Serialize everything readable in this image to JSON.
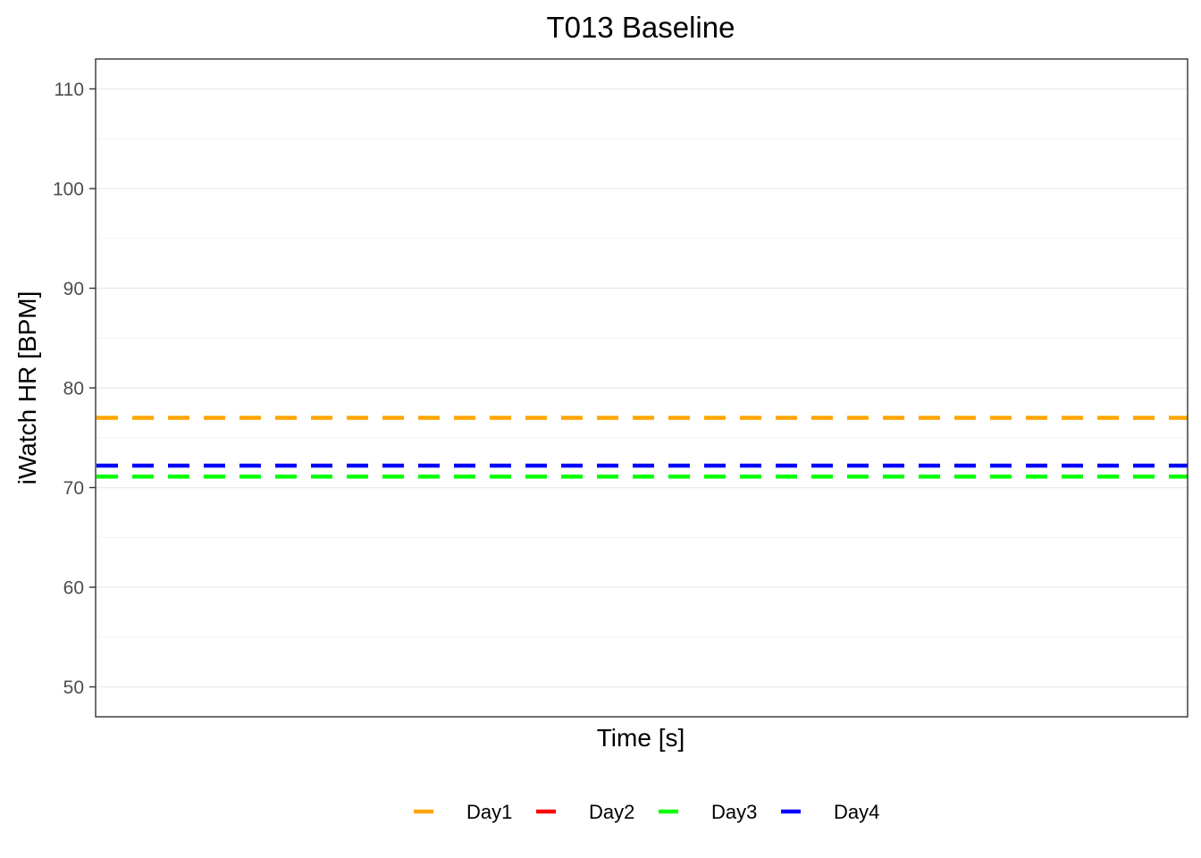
{
  "chart_data": {
    "type": "line",
    "title": "T013 Baseline",
    "xlabel": "Time [s]",
    "ylabel": "iWatch HR [BPM]",
    "ylim": [
      47,
      113
    ],
    "yticks": [
      50,
      60,
      70,
      80,
      90,
      100,
      110
    ],
    "ytick_labels": [
      "50",
      "60",
      "70",
      "80",
      "90",
      "100",
      "110"
    ],
    "grid": true,
    "legend_position": "bottom",
    "series": [
      {
        "name": "Day1",
        "color": "#FFA500",
        "value": 77.0,
        "line_style": "dashed"
      },
      {
        "name": "Day2",
        "color": "#FF0000",
        "value": null,
        "line_style": "dashed"
      },
      {
        "name": "Day3",
        "color": "#00FF00",
        "value": 71.1,
        "line_style": "dashed"
      },
      {
        "name": "Day4",
        "color": "#0000FF",
        "value": 72.2,
        "line_style": "dashed"
      }
    ]
  }
}
